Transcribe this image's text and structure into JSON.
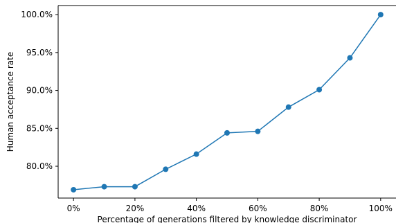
{
  "chart_data": {
    "type": "line",
    "title": "",
    "xlabel": "Percentage of generations filtered by knowledge discriminator",
    "ylabel": "Human acceptance rate",
    "x": [
      0,
      10,
      20,
      30,
      40,
      50,
      60,
      70,
      80,
      90,
      100
    ],
    "series": [
      {
        "values": [
          76.9,
          77.3,
          77.3,
          79.6,
          81.6,
          84.4,
          84.6,
          87.8,
          90.1,
          94.3,
          100.0
        ]
      }
    ],
    "xlim": [
      -5,
      105
    ],
    "ylim": [
      75.8,
      101.2
    ],
    "x_ticks": [
      0,
      20,
      40,
      60,
      80,
      100
    ],
    "x_tick_labels": [
      "0%",
      "20%",
      "40%",
      "60%",
      "80%",
      "100%"
    ],
    "y_ticks": [
      80,
      85,
      90,
      95,
      100
    ],
    "y_tick_labels": [
      "80.0%",
      "85.0%",
      "90.0%",
      "95.0%",
      "100.0%"
    ],
    "grid": false,
    "legend": "none",
    "color": "#1f77b4"
  }
}
